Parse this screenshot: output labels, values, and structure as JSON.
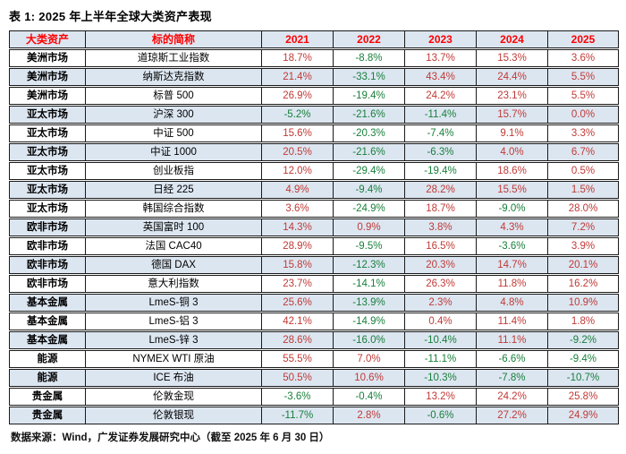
{
  "title": "表 1: 2025 年上半年全球大类资产表现",
  "footer": "数据来源：Wind，广发证券发展研究中心（截至 2025 年 6 月 30 日）",
  "colors": {
    "header_text": "#ff0000",
    "positive_value": "#c03a36",
    "negative_value": "#187f3a",
    "alt_row_bg": "#dce6f1",
    "row_bg": "#ffffff",
    "border": "#1a1a1a"
  },
  "table": {
    "headers": [
      "大类资产",
      "标的简称",
      "2021",
      "2022",
      "2023",
      "2024",
      "2025"
    ],
    "rows": [
      {
        "category": "美洲市场",
        "name": "道琼斯工业指数",
        "values": [
          "18.7%",
          "-8.8%",
          "13.7%",
          "15.3%",
          "3.6%"
        ]
      },
      {
        "category": "美洲市场",
        "name": "纳斯达克指数",
        "values": [
          "21.4%",
          "-33.1%",
          "43.4%",
          "24.4%",
          "5.5%"
        ]
      },
      {
        "category": "美洲市场",
        "name": "标普 500",
        "values": [
          "26.9%",
          "-19.4%",
          "24.2%",
          "23.1%",
          "5.5%"
        ]
      },
      {
        "category": "亚太市场",
        "name": "沪深 300",
        "values": [
          "-5.2%",
          "-21.6%",
          "-11.4%",
          "15.7%",
          "0.0%"
        ]
      },
      {
        "category": "亚太市场",
        "name": "中证 500",
        "values": [
          "15.6%",
          "-20.3%",
          "-7.4%",
          "9.1%",
          "3.3%"
        ]
      },
      {
        "category": "亚太市场",
        "name": "中证 1000",
        "values": [
          "20.5%",
          "-21.6%",
          "-6.3%",
          "4.0%",
          "6.7%"
        ]
      },
      {
        "category": "亚太市场",
        "name": "创业板指",
        "values": [
          "12.0%",
          "-29.4%",
          "-19.4%",
          "18.6%",
          "0.5%"
        ]
      },
      {
        "category": "亚太市场",
        "name": "日经 225",
        "values": [
          "4.9%",
          "-9.4%",
          "28.2%",
          "15.5%",
          "1.5%"
        ]
      },
      {
        "category": "亚太市场",
        "name": "韩国综合指数",
        "values": [
          "3.6%",
          "-24.9%",
          "18.7%",
          "-9.0%",
          "28.0%"
        ]
      },
      {
        "category": "欧非市场",
        "name": "英国富时 100",
        "values": [
          "14.3%",
          "0.9%",
          "3.8%",
          "4.3%",
          "7.2%"
        ]
      },
      {
        "category": "欧非市场",
        "name": "法国 CAC40",
        "values": [
          "28.9%",
          "-9.5%",
          "16.5%",
          "-3.6%",
          "3.9%"
        ]
      },
      {
        "category": "欧非市场",
        "name": "德国 DAX",
        "values": [
          "15.8%",
          "-12.3%",
          "20.3%",
          "14.7%",
          "20.1%"
        ]
      },
      {
        "category": "欧非市场",
        "name": "意大利指数",
        "values": [
          "23.7%",
          "-14.1%",
          "26.3%",
          "11.8%",
          "16.2%"
        ]
      },
      {
        "category": "基本金属",
        "name": "LmeS-铜 3",
        "values": [
          "25.6%",
          "-13.9%",
          "2.3%",
          "4.8%",
          "10.9%"
        ]
      },
      {
        "category": "基本金属",
        "name": "LmeS-铝 3",
        "values": [
          "42.1%",
          "-14.9%",
          "0.4%",
          "11.4%",
          "1.8%"
        ]
      },
      {
        "category": "基本金属",
        "name": "LmeS-锌 3",
        "values": [
          "28.6%",
          "-16.0%",
          "-10.4%",
          "11.1%",
          "-9.2%"
        ]
      },
      {
        "category": "能源",
        "name": "NYMEX WTI 原油",
        "values": [
          "55.5%",
          "7.0%",
          "-11.1%",
          "-6.6%",
          "-9.4%"
        ]
      },
      {
        "category": "能源",
        "name": "ICE 布油",
        "values": [
          "50.5%",
          "10.6%",
          "-10.3%",
          "-7.8%",
          "-10.7%"
        ]
      },
      {
        "category": "贵金属",
        "name": "伦敦金现",
        "values": [
          "-3.6%",
          "-0.4%",
          "13.2%",
          "24.2%",
          "25.8%"
        ]
      },
      {
        "category": "贵金属",
        "name": "伦敦银现",
        "values": [
          "-11.7%",
          "2.8%",
          "-0.6%",
          "27.2%",
          "24.9%"
        ]
      }
    ]
  }
}
